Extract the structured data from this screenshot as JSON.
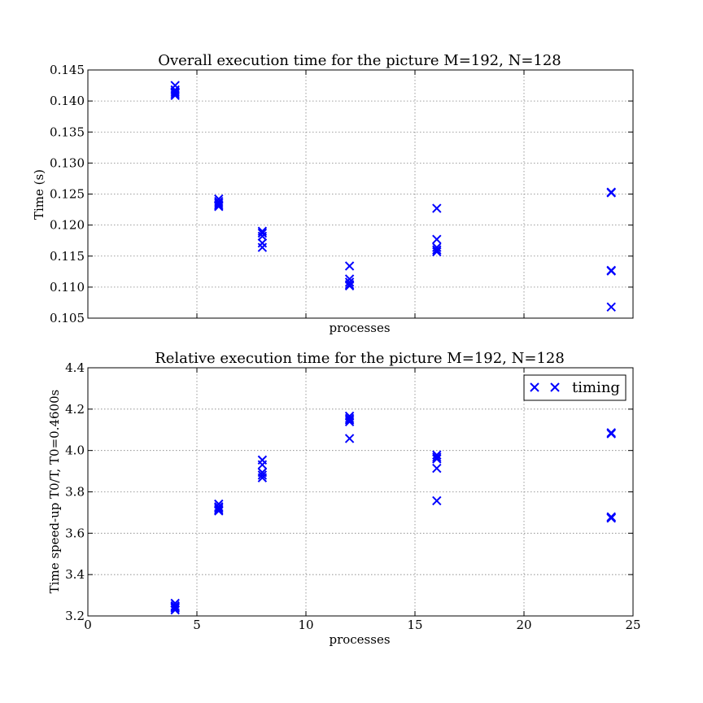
{
  "chart_data": [
    {
      "type": "scatter",
      "title": "Overall execution time for the picture M=192, N=128",
      "xlabel": "processes",
      "ylabel": "Time (s)",
      "xlim": [
        0,
        25
      ],
      "ylim": [
        0.105,
        0.145
      ],
      "grid": true,
      "show_xticklabels": false,
      "xticks": [
        0,
        5,
        10,
        15,
        20,
        25
      ],
      "yticks": [
        0.105,
        0.11,
        0.115,
        0.12,
        0.125,
        0.13,
        0.135,
        0.14,
        0.145
      ],
      "ytick_labels": [
        "0.105",
        "0.110",
        "0.115",
        "0.120",
        "0.125",
        "0.130",
        "0.135",
        "0.140",
        "0.145"
      ],
      "xtick_labels": [
        "",
        "",
        "",
        "",
        "",
        ""
      ],
      "marker_color": "#0000ff",
      "series": [
        {
          "name": "timing",
          "x": [
            4,
            4,
            4,
            4,
            4,
            6,
            6,
            6,
            6,
            6,
            8,
            8,
            8,
            8,
            8,
            12,
            12,
            12,
            12,
            12,
            16,
            16,
            16,
            16,
            16,
            24,
            24,
            24,
            24,
            24
          ],
          "y": [
            0.1425,
            0.1418,
            0.1415,
            0.1412,
            0.1409,
            0.1242,
            0.1238,
            0.1235,
            0.1232,
            0.123,
            0.119,
            0.1187,
            0.1182,
            0.1171,
            0.1164,
            0.1134,
            0.1113,
            0.1108,
            0.1104,
            0.1102,
            0.1227,
            0.1177,
            0.1164,
            0.116,
            0.1157,
            0.1253,
            0.1252,
            0.1127,
            0.1126,
            0.1068
          ]
        }
      ]
    },
    {
      "type": "scatter",
      "title": "Relative execution time for the picture M=192, N=128",
      "xlabel": "processes",
      "ylabel": "Time speed-up T0/T, T0=0.4600s",
      "xlim": [
        0,
        25
      ],
      "ylim": [
        3.2,
        4.4
      ],
      "grid": true,
      "show_xticklabels": true,
      "xticks": [
        0,
        5,
        10,
        15,
        20,
        25
      ],
      "xtick_labels": [
        "0",
        "5",
        "10",
        "15",
        "20",
        "25"
      ],
      "yticks": [
        3.2,
        3.4,
        3.6,
        3.8,
        4.0,
        4.2,
        4.4
      ],
      "ytick_labels": [
        "3.2",
        "3.4",
        "3.6",
        "3.8",
        "4.0",
        "4.2",
        "4.4"
      ],
      "marker_color": "#0000ff",
      "legend": {
        "position": "top-right",
        "label": "timing"
      },
      "series": [
        {
          "name": "timing",
          "x": [
            4,
            4,
            4,
            4,
            4,
            6,
            6,
            6,
            6,
            6,
            8,
            8,
            8,
            8,
            8,
            12,
            12,
            12,
            12,
            12,
            16,
            16,
            16,
            16,
            16,
            24,
            24,
            24,
            24,
            24
          ],
          "y": [
            3.261,
            3.249,
            3.243,
            3.238,
            3.229,
            3.741,
            3.728,
            3.722,
            3.714,
            3.708,
            3.954,
            3.931,
            3.894,
            3.881,
            3.868,
            4.166,
            4.155,
            4.148,
            4.139,
            4.058,
            3.978,
            3.967,
            3.959,
            3.914,
            3.757,
            4.086,
            4.081,
            3.679,
            3.675,
            3.673
          ]
        }
      ]
    }
  ]
}
